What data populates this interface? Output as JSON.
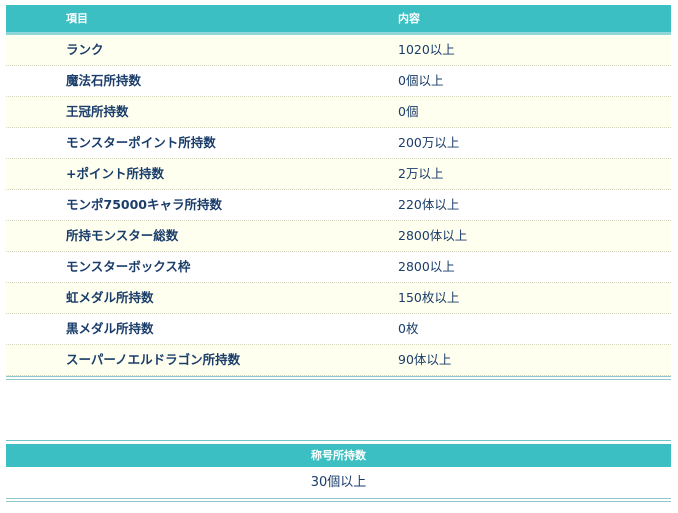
{
  "table1": {
    "headers": [
      "項目",
      "内容"
    ],
    "rows": [
      {
        "item": "ランク",
        "value": "1020以上"
      },
      {
        "item": "魔法石所持数",
        "value": "0個以上"
      },
      {
        "item": "王冠所持数",
        "value": "0個"
      },
      {
        "item": "モンスターポイント所持数",
        "value": "200万以上"
      },
      {
        "item": "+ポイント所持数",
        "value": "2万以上"
      },
      {
        "item": "モンポ75000キャラ所持数",
        "value": "220体以上"
      },
      {
        "item": "所持モンスター総数",
        "value": "2800体以上"
      },
      {
        "item": "モンスターボックス枠",
        "value": "2800以上"
      },
      {
        "item": "虹メダル所持数",
        "value": "150枚以上"
      },
      {
        "item": "黒メダル所持数",
        "value": "0枚"
      },
      {
        "item": "スーパーノエルドラゴン所持数",
        "value": "90体以上"
      }
    ]
  },
  "table2": {
    "header": "称号所持数",
    "value": "30個以上"
  },
  "colors": {
    "header": "#3bbfc2",
    "stripe": "#fffff0",
    "text": "#1a3d6a"
  }
}
